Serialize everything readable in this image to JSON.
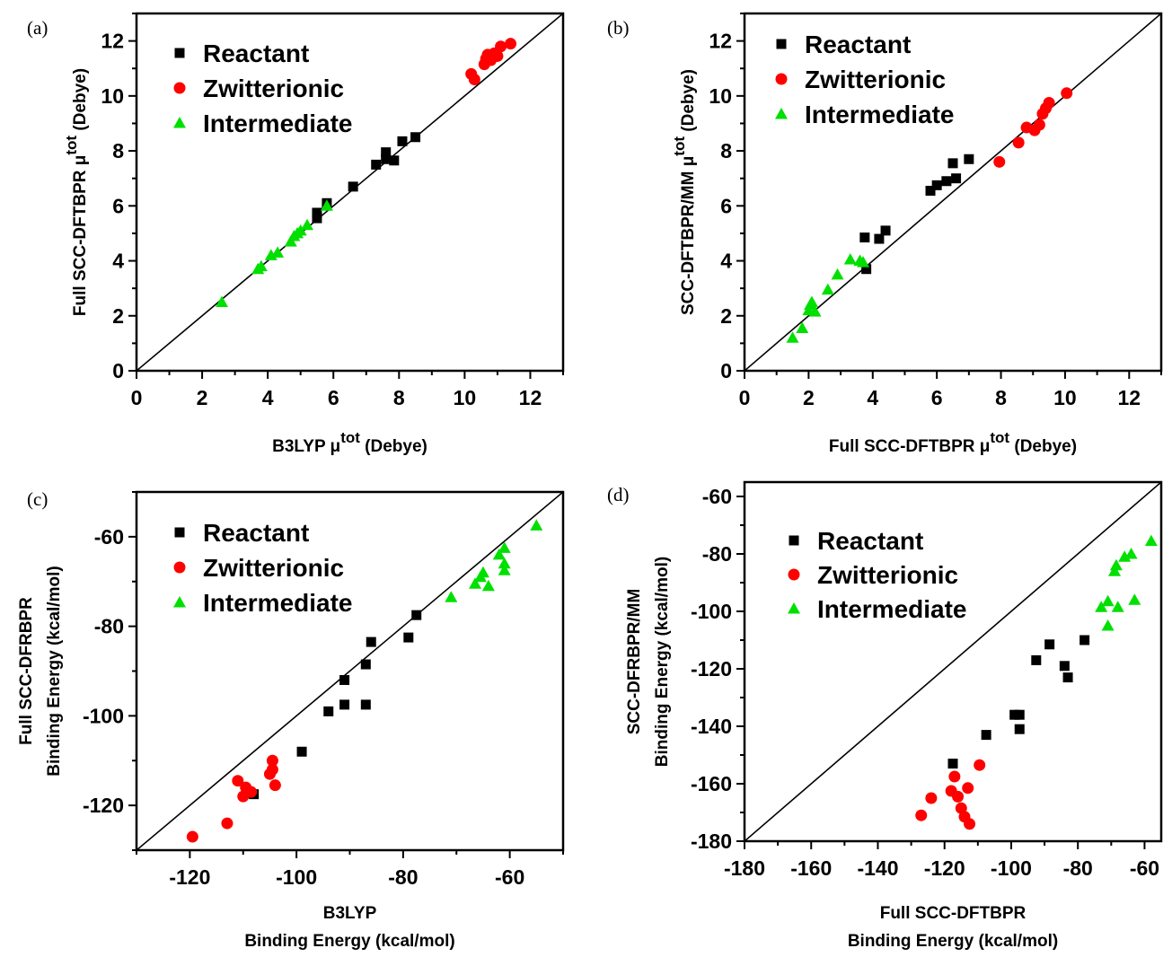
{
  "colors": {
    "Reactant": "#000000",
    "Zwitterionic": "#ff0000",
    "Intermediate": "#00e000"
  },
  "chart_data": [
    {
      "type": "scatter",
      "panel_label": "(a)",
      "xlabel": "B3LYP μ",
      "xlabel_sup": "tot",
      "xlabel_tail": " (Debye)",
      "ylabel": "Full SCC-DFTBPR μ",
      "ylabel_sup": "tot",
      "ylabel_tail": " (Debye)",
      "xlim": [
        0,
        13
      ],
      "ylim": [
        0,
        13
      ],
      "xticks": [
        0,
        2,
        4,
        6,
        8,
        10,
        12
      ],
      "yticks": [
        0,
        2,
        4,
        6,
        8,
        10,
        12
      ],
      "diagonal": true,
      "series": [
        {
          "name": "Reactant",
          "marker": "square",
          "points": [
            [
              5.5,
              5.75
            ],
            [
              5.5,
              5.55
            ],
            [
              5.8,
              6.1
            ],
            [
              6.6,
              6.7
            ],
            [
              7.3,
              7.5
            ],
            [
              7.6,
              7.95
            ],
            [
              7.6,
              7.7
            ],
            [
              7.85,
              7.65
            ],
            [
              8.1,
              8.35
            ],
            [
              8.5,
              8.5
            ]
          ]
        },
        {
          "name": "Zwitterionic",
          "marker": "circle",
          "points": [
            [
              10.2,
              10.8
            ],
            [
              10.3,
              10.6
            ],
            [
              10.6,
              11.15
            ],
            [
              10.65,
              11.35
            ],
            [
              10.7,
              11.5
            ],
            [
              10.8,
              11.3
            ],
            [
              10.9,
              11.55
            ],
            [
              11.0,
              11.45
            ],
            [
              11.1,
              11.8
            ],
            [
              11.4,
              11.9
            ]
          ]
        },
        {
          "name": "Intermediate",
          "marker": "triangle",
          "points": [
            [
              2.6,
              2.5
            ],
            [
              3.7,
              3.7
            ],
            [
              3.8,
              3.8
            ],
            [
              4.1,
              4.2
            ],
            [
              4.3,
              4.3
            ],
            [
              4.7,
              4.7
            ],
            [
              4.8,
              4.9
            ],
            [
              4.9,
              5.0
            ],
            [
              5.0,
              5.1
            ],
            [
              5.2,
              5.3
            ],
            [
              5.8,
              6.0
            ]
          ]
        }
      ]
    },
    {
      "type": "scatter",
      "panel_label": "(b)",
      "xlabel": "Full SCC-DFTBPR μ",
      "xlabel_sup": "tot",
      "xlabel_tail": " (Debye)",
      "ylabel": "SCC-DFTBPR/MM μ",
      "ylabel_sup": "tot",
      "ylabel_tail": " (Debye)",
      "xlim": [
        0,
        13
      ],
      "ylim": [
        0,
        13
      ],
      "xticks": [
        0,
        2,
        4,
        6,
        8,
        10,
        12
      ],
      "yticks": [
        0,
        2,
        4,
        6,
        8,
        10,
        12
      ],
      "diagonal": true,
      "series": [
        {
          "name": "Reactant",
          "marker": "square",
          "points": [
            [
              3.75,
              4.85
            ],
            [
              3.8,
              3.7
            ],
            [
              4.2,
              4.8
            ],
            [
              4.4,
              5.1
            ],
            [
              5.8,
              6.55
            ],
            [
              6.0,
              6.75
            ],
            [
              6.3,
              6.9
            ],
            [
              6.5,
              7.55
            ],
            [
              6.6,
              7.0
            ],
            [
              7.0,
              7.7
            ]
          ]
        },
        {
          "name": "Zwitterionic",
          "marker": "circle",
          "points": [
            [
              7.95,
              7.6
            ],
            [
              8.55,
              8.3
            ],
            [
              8.8,
              8.85
            ],
            [
              9.05,
              8.75
            ],
            [
              9.2,
              8.95
            ],
            [
              9.3,
              9.35
            ],
            [
              9.4,
              9.55
            ],
            [
              9.5,
              9.75
            ],
            [
              10.05,
              10.1
            ]
          ]
        },
        {
          "name": "Intermediate",
          "marker": "triangle",
          "points": [
            [
              1.5,
              1.2
            ],
            [
              1.8,
              1.55
            ],
            [
              2.0,
              2.2
            ],
            [
              2.05,
              2.4
            ],
            [
              2.1,
              2.5
            ],
            [
              2.2,
              2.15
            ],
            [
              2.6,
              2.95
            ],
            [
              2.9,
              3.5
            ],
            [
              3.3,
              4.05
            ],
            [
              3.6,
              4.0
            ],
            [
              3.7,
              3.95
            ]
          ]
        }
      ]
    },
    {
      "type": "scatter",
      "panel_label": "(c)",
      "xlabel": "B3LYP",
      "xlabel2": "Binding Energy (kcal/mol)",
      "ylabel": "Full SCC-DFRBPR",
      "ylabel2": "Binding Energy (kcal/mol)",
      "xlim": [
        -130,
        -50
      ],
      "ylim": [
        -130,
        -50
      ],
      "xticks": [
        -120,
        -100,
        -80,
        -60
      ],
      "yticks": [
        -120,
        -100,
        -80,
        -60
      ],
      "diagonal": true,
      "series": [
        {
          "name": "Reactant",
          "marker": "square",
          "points": [
            [
              -108,
              -117.5
            ],
            [
              -99,
              -108
            ],
            [
              -94,
              -99
            ],
            [
              -91,
              -92
            ],
            [
              -91,
              -97.5
            ],
            [
              -87,
              -97.5
            ],
            [
              -87,
              -88.5
            ],
            [
              -86,
              -83.5
            ],
            [
              -79,
              -82.5
            ],
            [
              -77.5,
              -77.5
            ]
          ]
        },
        {
          "name": "Zwitterionic",
          "marker": "circle",
          "points": [
            [
              -119.5,
              -127
            ],
            [
              -113,
              -124
            ],
            [
              -111,
              -114.5
            ],
            [
              -110,
              -118
            ],
            [
              -109.5,
              -116
            ],
            [
              -108.5,
              -117
            ],
            [
              -105,
              -113
            ],
            [
              -104.5,
              -112
            ],
            [
              -104.5,
              -110
            ],
            [
              -104,
              -115.5
            ]
          ]
        },
        {
          "name": "Intermediate",
          "marker": "triangle",
          "points": [
            [
              -71,
              -73.5
            ],
            [
              -66.5,
              -70.5
            ],
            [
              -65.5,
              -69
            ],
            [
              -65,
              -68
            ],
            [
              -64,
              -71
            ],
            [
              -62,
              -64
            ],
            [
              -61,
              -62.5
            ],
            [
              -61,
              -66
            ],
            [
              -61,
              -67.5
            ],
            [
              -55,
              -57.5
            ]
          ]
        }
      ]
    },
    {
      "type": "scatter",
      "panel_label": "(d)",
      "xlabel": "Full SCC-DFTBPR",
      "xlabel2": "Binding Energy (kcal/mol)",
      "ylabel": "SCC-DFRBPR/MM",
      "ylabel2": "Binding Energy (kcal/mol)",
      "xlim": [
        -180,
        -55
      ],
      "ylim": [
        -180,
        -55
      ],
      "xticks": [
        -180,
        -160,
        -140,
        -120,
        -100,
        -80,
        -60
      ],
      "yticks": [
        -180,
        -160,
        -140,
        -120,
        -100,
        -80,
        -60
      ],
      "diagonal": true,
      "series": [
        {
          "name": "Reactant",
          "marker": "square",
          "points": [
            [
              -117.5,
              -153
            ],
            [
              -107.5,
              -143
            ],
            [
              -99,
              -136
            ],
            [
              -97.5,
              -136
            ],
            [
              -97.5,
              -141
            ],
            [
              -92.5,
              -117
            ],
            [
              -88.5,
              -111.5
            ],
            [
              -84,
              -119
            ],
            [
              -83,
              -123
            ],
            [
              -78,
              -110
            ]
          ]
        },
        {
          "name": "Zwitterionic",
          "marker": "circle",
          "points": [
            [
              -127,
              -171
            ],
            [
              -124,
              -165
            ],
            [
              -118,
              -162.5
            ],
            [
              -117,
              -157.5
            ],
            [
              -116,
              -164.5
            ],
            [
              -115,
              -168.5
            ],
            [
              -114,
              -171.5
            ],
            [
              -113,
              -161.5
            ],
            [
              -112.5,
              -174
            ],
            [
              -109.5,
              -153.5
            ]
          ]
        },
        {
          "name": "Intermediate",
          "marker": "triangle",
          "points": [
            [
              -73,
              -98.5
            ],
            [
              -71,
              -96.5
            ],
            [
              -71,
              -105
            ],
            [
              -69,
              -86
            ],
            [
              -68.5,
              -84
            ],
            [
              -68,
              -98.5
            ],
            [
              -66,
              -81
            ],
            [
              -64,
              -80
            ],
            [
              -63,
              -96
            ],
            [
              -58,
              -75.5
            ]
          ]
        }
      ]
    }
  ]
}
